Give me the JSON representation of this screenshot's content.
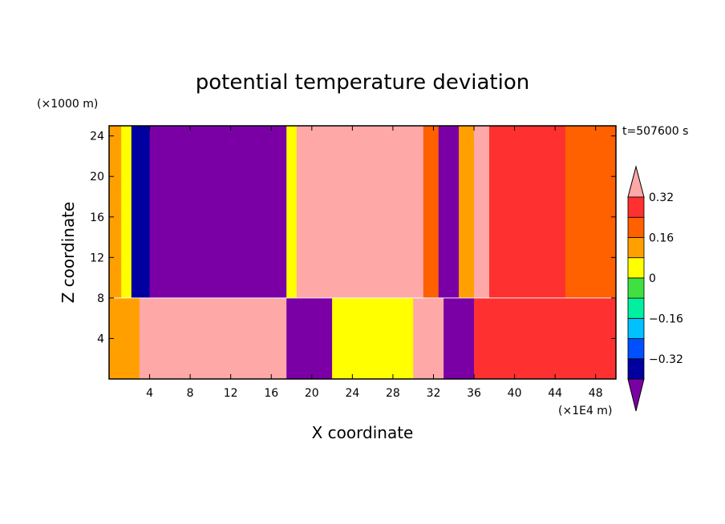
{
  "chart_data": {
    "type": "heatmap",
    "title": "potential temperature deviation",
    "xlabel": "X coordinate",
    "ylabel": "Z coordinate",
    "x_unit": "(×1E4 m)",
    "y_unit": "(×1000 m)",
    "time_label": "t=507600 s",
    "xlim": [
      0,
      50
    ],
    "ylim": [
      0,
      25
    ],
    "x_ticks": [
      4,
      8,
      12,
      16,
      20,
      24,
      28,
      32,
      36,
      40,
      44,
      48
    ],
    "y_ticks": [
      4,
      8,
      12,
      16,
      20,
      24
    ],
    "colorbar": {
      "levels": [
        -0.48,
        -0.4,
        -0.32,
        -0.24,
        -0.16,
        -0.08,
        0,
        0.08,
        0.16,
        0.24,
        0.32,
        0.4
      ],
      "tick_labels": [
        "0.32",
        "0.16",
        "0",
        "−0.16",
        "−0.32"
      ],
      "tick_values": [
        0.32,
        0.16,
        0,
        -0.16,
        -0.32
      ],
      "colors": [
        "#7a00a6",
        "#0000a0",
        "#0050ff",
        "#00c0ff",
        "#00f0a0",
        "#40e040",
        "#ffff00",
        "#ffa000",
        "#ff6000",
        "#ff3030",
        "#ffa8a8"
      ],
      "extend": "both"
    },
    "upper_layer_columns": [
      {
        "x0": 0,
        "x1": 1.2,
        "value": 0.12
      },
      {
        "x0": 1.2,
        "x1": 2.2,
        "value": 0.0
      },
      {
        "x0": 2.2,
        "x1": 4,
        "value": -0.36
      },
      {
        "x0": 4,
        "x1": 17.5,
        "value": -0.44
      },
      {
        "x0": 17.5,
        "x1": 18.5,
        "value": 0.04
      },
      {
        "x0": 18.5,
        "x1": 31,
        "value": 0.44
      },
      {
        "x0": 31,
        "x1": 32.5,
        "value": 0.2
      },
      {
        "x0": 32.5,
        "x1": 34.5,
        "value": -0.44
      },
      {
        "x0": 34.5,
        "x1": 36,
        "value": 0.12
      },
      {
        "x0": 36,
        "x1": 37.5,
        "value": 0.36
      },
      {
        "x0": 37.5,
        "x1": 45,
        "value": 0.24
      },
      {
        "x0": 45,
        "x1": 50,
        "value": 0.2
      }
    ],
    "lower_layer_columns": [
      {
        "x0": 0,
        "x1": 3,
        "value": 0.1
      },
      {
        "x0": 3,
        "x1": 17.5,
        "value": 0.4
      },
      {
        "x0": 17.5,
        "x1": 22,
        "value": -0.44
      },
      {
        "x0": 22,
        "x1": 30,
        "value": 0.0
      },
      {
        "x0": 30,
        "x1": 33,
        "value": 0.44
      },
      {
        "x0": 33,
        "x1": 36,
        "value": -0.44
      },
      {
        "x0": 36,
        "x1": 50,
        "value": 0.3
      }
    ],
    "layer_boundary_z": 8
  }
}
